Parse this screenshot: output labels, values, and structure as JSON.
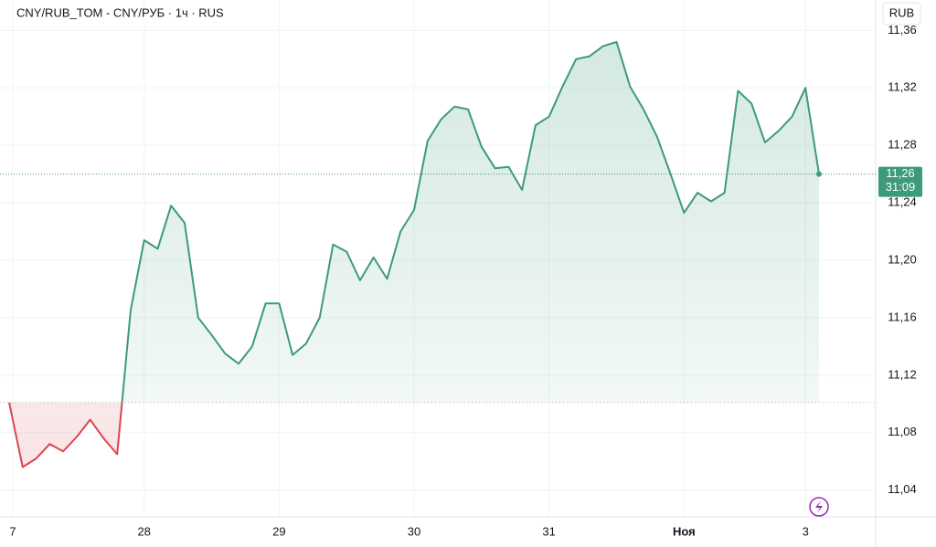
{
  "chart_data": {
    "type": "line",
    "title": "CNY/RUB_TOM - CNY/РУБ · 1ч · RUS",
    "currency": "RUB",
    "series": [
      {
        "name": "CNY/RUB_TOM",
        "color": "#3d9a7b",
        "down_color": "#d9454f",
        "values": [
          11.101,
          11.056,
          11.062,
          11.072,
          11.067,
          11.077,
          11.089,
          11.076,
          11.065,
          11.165,
          11.214,
          11.208,
          11.238,
          11.226,
          11.16,
          11.148,
          11.135,
          11.128,
          11.14,
          11.17,
          11.17,
          11.134,
          11.142,
          11.16,
          11.211,
          11.206,
          11.186,
          11.202,
          11.187,
          11.22,
          11.235,
          11.283,
          11.298,
          11.307,
          11.305,
          11.279,
          11.264,
          11.265,
          11.249,
          11.294,
          11.3,
          11.321,
          11.34,
          11.342,
          11.349,
          11.352,
          11.321,
          11.305,
          11.286,
          11.26,
          11.233,
          11.247,
          11.241,
          11.247,
          11.318,
          11.309,
          11.282,
          11.29,
          11.3,
          11.32,
          11.26
        ]
      }
    ],
    "baseline": 11.101,
    "current_price": {
      "value": 11.26,
      "label": "11,26"
    },
    "countdown": "31:09",
    "xlim": [
      -0.68,
      64.2
    ],
    "xticks": [
      {
        "value": 0.27,
        "label": "7"
      },
      {
        "value": 10,
        "label": "28"
      },
      {
        "value": 20,
        "label": "29"
      },
      {
        "value": 30,
        "label": "30"
      },
      {
        "value": 40,
        "label": "31"
      },
      {
        "value": 50,
        "label": "Ноя"
      },
      {
        "value": 59,
        "label": "3"
      }
    ],
    "ylim": [
      11.022,
      11.378
    ],
    "yticks": [
      {
        "value": 11.04,
        "label": "11,04"
      },
      {
        "value": 11.08,
        "label": "11,08"
      },
      {
        "value": 11.12,
        "label": "11,12"
      },
      {
        "value": 11.16,
        "label": "11,16"
      },
      {
        "value": 11.2,
        "label": "11,20"
      },
      {
        "value": 11.24,
        "label": "11,24"
      },
      {
        "value": 11.28,
        "label": "11,28"
      },
      {
        "value": 11.32,
        "label": "11,32"
      },
      {
        "value": 11.36,
        "label": "11,36"
      }
    ],
    "grid": true
  }
}
